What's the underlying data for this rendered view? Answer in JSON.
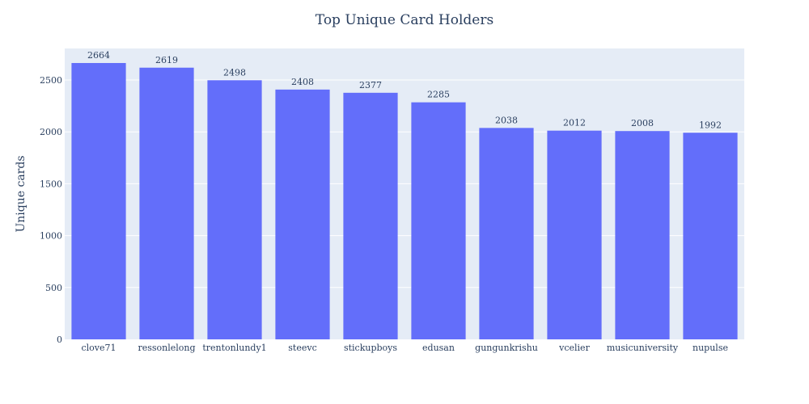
{
  "chart_data": {
    "type": "bar",
    "title": "Top Unique Card Holders",
    "xlabel": "",
    "ylabel": "Unique cards",
    "categories": [
      "clove71",
      "ressonlelong",
      "trentonlundy1",
      "steevc",
      "stickupboys",
      "edusan",
      "gungunkrishu",
      "vcelier",
      "musicuniversity",
      "nupulse"
    ],
    "values": [
      2664,
      2619,
      2498,
      2408,
      2377,
      2285,
      2038,
      2012,
      2008,
      1992
    ],
    "data_labels": [
      "2664",
      "2619",
      "2498",
      "2408",
      "2377",
      "2285",
      "2038",
      "2012",
      "2008",
      "1992"
    ],
    "ylim": [
      0,
      2804
    ],
    "yticks": [
      0,
      500,
      1000,
      1500,
      2000,
      2500
    ],
    "ytick_labels": [
      "0",
      "500",
      "1000",
      "1500",
      "2000",
      "2500"
    ],
    "grid": true,
    "legend": "none",
    "bar_color": "#636efa",
    "plot_bg": "#e5ecf6",
    "grid_color": "#ffffff",
    "text_color": "#2a3f5f"
  }
}
